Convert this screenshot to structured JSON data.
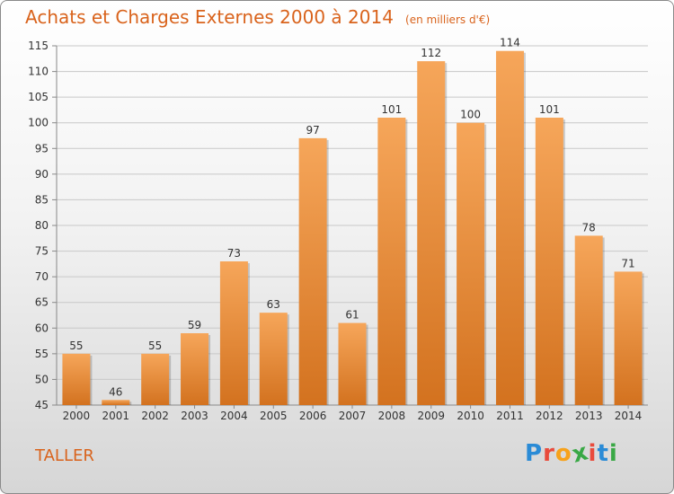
{
  "title": "Achats et Charges Externes 2000 à 2014",
  "unit": "(en milliers d'€)",
  "commune": "TALLER",
  "brand": [
    "P",
    "r",
    "o",
    "x",
    "i",
    "t",
    "i"
  ],
  "brand_colors": [
    "#2a8bd6",
    "#e94b3c",
    "#f7a21b",
    "#39a845",
    "#e94b3c",
    "#2a8bd6",
    "#39a845"
  ],
  "colors": {
    "accent": "#d9631c",
    "bar_light": "#f6a65a",
    "bar_dark": "#d3721f"
  },
  "chart_data": {
    "type": "bar",
    "title": "Achats et Charges Externes 2000 à 2014",
    "xlabel": "",
    "ylabel": "",
    "categories": [
      "2000",
      "2001",
      "2002",
      "2003",
      "2004",
      "2005",
      "2006",
      "2007",
      "2008",
      "2009",
      "2010",
      "2011",
      "2012",
      "2013",
      "2014"
    ],
    "values": [
      55,
      46,
      55,
      59,
      73,
      63,
      97,
      61,
      101,
      112,
      100,
      114,
      101,
      78,
      71
    ],
    "ylim": [
      45,
      115
    ],
    "yticks": [
      45,
      50,
      55,
      60,
      65,
      70,
      75,
      80,
      85,
      90,
      95,
      100,
      105,
      110,
      115
    ],
    "grid": true,
    "data_labels": true
  }
}
